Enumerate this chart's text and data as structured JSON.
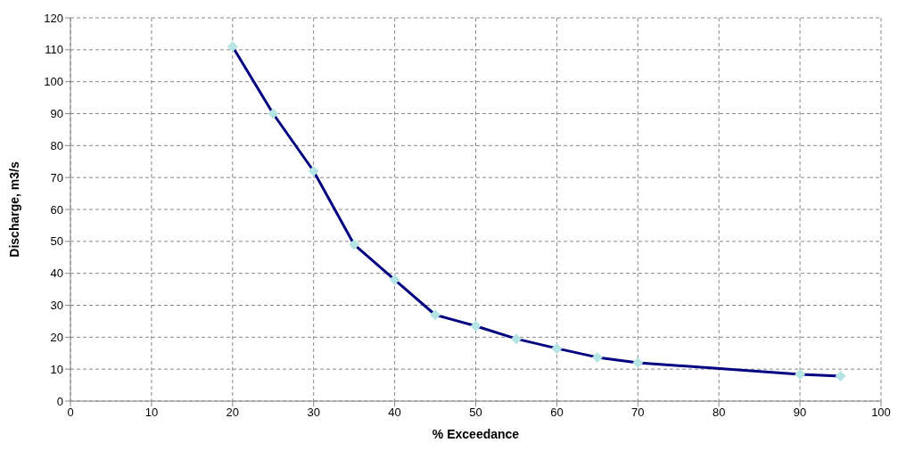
{
  "chart_data": {
    "type": "line",
    "xlabel": "% Exceedance",
    "ylabel": "Discharge, m3/s",
    "x": [
      20,
      25,
      30,
      35,
      40,
      45,
      50,
      55,
      60,
      65,
      70,
      90,
      95
    ],
    "series": [
      {
        "color": "#000080",
        "values": [
          111,
          90,
          72,
          49,
          38,
          27,
          23.5,
          19.5,
          16.5,
          13.7,
          12,
          8.4,
          7.8
        ]
      }
    ],
    "marker": "diamond",
    "line_style": "solid",
    "grid": true,
    "xlim": [
      0,
      100
    ],
    "xticks": [
      0,
      10,
      20,
      30,
      40,
      50,
      60,
      70,
      80,
      90,
      100
    ],
    "ylim": [
      0,
      120
    ],
    "yticks": [
      0,
      10,
      20,
      30,
      40,
      50,
      60,
      70,
      80,
      90,
      100,
      110,
      120
    ]
  }
}
